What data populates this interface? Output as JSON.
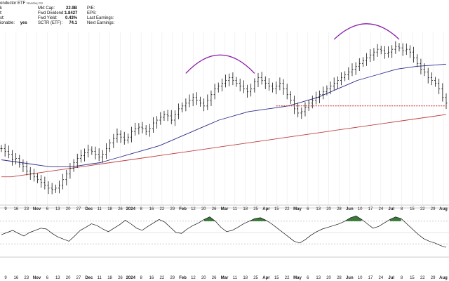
{
  "header": {
    "title": "onductor ETF",
    "exchange": "Nasdaq GS",
    "rows": [
      {
        "label": "k",
        "value": ""
      },
      {
        "label": "t:",
        "value": ""
      },
      {
        "label": "st:",
        "value": ""
      },
      {
        "label": "ionable:",
        "value": "yes"
      }
    ],
    "metrics": [
      {
        "label": "Mkt Cap:",
        "value": "22.9B"
      },
      {
        "label": "Fwd Dividend:",
        "value": "1.8427"
      },
      {
        "label": "Fwd Yield:",
        "value": "0.43%"
      },
      {
        "label": "SCTR (ETF):",
        "value": "74.1"
      }
    ],
    "fundamentals": [
      "P/E:",
      "EPS:",
      "Last Earnings:",
      "Next Earnings:"
    ]
  },
  "colors": {
    "price_bars": "#111111",
    "ma_short": "#2c2c8c",
    "ma_long": "#c04040",
    "arcs": "#8a1aa8",
    "support_line": "#cc2222",
    "osc_fill": "#3a7a3a",
    "osc_line": "#111111",
    "grid": "#e6e6e6"
  },
  "chart_data": {
    "type": "ohlc",
    "x_ticks": [
      {
        "label": "9",
        "bold": false
      },
      {
        "label": "16",
        "bold": false
      },
      {
        "label": "23",
        "bold": false
      },
      {
        "label": "Nov",
        "bold": true
      },
      {
        "label": "6",
        "bold": false
      },
      {
        "label": "13",
        "bold": false
      },
      {
        "label": "20",
        "bold": false
      },
      {
        "label": "27",
        "bold": false
      },
      {
        "label": "Dec",
        "bold": true
      },
      {
        "label": "11",
        "bold": false
      },
      {
        "label": "18",
        "bold": false
      },
      {
        "label": "26",
        "bold": false
      },
      {
        "label": "2024",
        "bold": true
      },
      {
        "label": "8",
        "bold": false
      },
      {
        "label": "16",
        "bold": false
      },
      {
        "label": "22",
        "bold": false
      },
      {
        "label": "29",
        "bold": false
      },
      {
        "label": "Feb",
        "bold": true
      },
      {
        "label": "12",
        "bold": false
      },
      {
        "label": "20",
        "bold": false
      },
      {
        "label": "26",
        "bold": false
      },
      {
        "label": "Mar",
        "bold": true
      },
      {
        "label": "11",
        "bold": false
      },
      {
        "label": "18",
        "bold": false
      },
      {
        "label": "25",
        "bold": false
      },
      {
        "label": "Apr",
        "bold": true
      },
      {
        "label": "15",
        "bold": false
      },
      {
        "label": "22",
        "bold": false
      },
      {
        "label": "May",
        "bold": true
      },
      {
        "label": "6",
        "bold": false
      },
      {
        "label": "13",
        "bold": false
      },
      {
        "label": "20",
        "bold": false
      },
      {
        "label": "28",
        "bold": false
      },
      {
        "label": "Jun",
        "bold": true
      },
      {
        "label": "10",
        "bold": false
      },
      {
        "label": "17",
        "bold": false
      },
      {
        "label": "24",
        "bold": false
      },
      {
        "label": "Jul",
        "bold": true
      },
      {
        "label": "8",
        "bold": false
      },
      {
        "label": "15",
        "bold": false
      },
      {
        "label": "22",
        "bold": false
      },
      {
        "label": "29",
        "bold": false
      },
      {
        "label": "Aug",
        "bold": true
      }
    ],
    "price_series": [
      {
        "name": "close",
        "values": [
          0.38,
          0.36,
          0.34,
          0.3,
          0.31,
          0.27,
          0.25,
          0.22,
          0.2,
          0.18,
          0.16,
          0.14,
          0.12,
          0.1,
          0.09,
          0.1,
          0.12,
          0.16,
          0.2,
          0.24,
          0.28,
          0.31,
          0.33,
          0.35,
          0.37,
          0.36,
          0.34,
          0.32,
          0.34,
          0.38,
          0.42,
          0.45,
          0.48,
          0.46,
          0.44,
          0.46,
          0.5,
          0.52,
          0.53,
          0.52,
          0.5,
          0.52,
          0.56,
          0.58,
          0.6,
          0.62,
          0.61,
          0.58,
          0.62,
          0.66,
          0.68,
          0.7,
          0.72,
          0.74,
          0.72,
          0.7,
          0.68,
          0.72,
          0.76,
          0.8,
          0.82,
          0.84,
          0.86,
          0.88,
          0.86,
          0.84,
          0.82,
          0.8,
          0.78,
          0.8,
          0.85,
          0.88,
          0.86,
          0.84,
          0.82,
          0.8,
          0.82,
          0.84,
          0.8,
          0.76,
          0.72,
          0.66,
          0.63,
          0.64,
          0.67,
          0.7,
          0.72,
          0.74,
          0.76,
          0.78,
          0.8,
          0.82,
          0.84,
          0.86,
          0.88,
          0.9,
          0.92,
          0.94,
          0.96,
          0.98,
          1.0,
          1.02,
          1.04,
          1.06,
          1.08,
          1.07,
          1.05,
          1.06,
          1.08,
          1.1,
          1.09,
          1.07,
          1.08,
          1.06,
          1.02,
          0.98,
          0.94,
          0.92,
          0.88,
          0.86,
          0.84,
          0.8,
          0.74,
          0.7
        ]
      }
    ],
    "ma_series": [
      {
        "values": [
          0.3,
          0.29,
          0.28,
          0.27,
          0.26,
          0.25,
          0.25,
          0.25,
          0.26,
          0.27,
          0.28,
          0.3,
          0.32,
          0.34,
          0.36,
          0.38,
          0.4,
          0.43,
          0.46,
          0.49,
          0.52,
          0.55,
          0.58,
          0.6,
          0.62,
          0.64,
          0.65,
          0.66,
          0.67,
          0.68,
          0.7,
          0.72,
          0.74,
          0.77,
          0.8,
          0.83,
          0.86,
          0.88,
          0.9,
          0.92,
          0.94,
          0.95,
          0.96,
          0.965,
          0.97,
          0.975
        ]
      },
      {
        "values": [
          0.18,
          0.18,
          0.19,
          0.2,
          0.21,
          0.22,
          0.23,
          0.24,
          0.25,
          0.26,
          0.27,
          0.28,
          0.29,
          0.3,
          0.31,
          0.32,
          0.33,
          0.34,
          0.35,
          0.36,
          0.37,
          0.38,
          0.39,
          0.4,
          0.41,
          0.42,
          0.43,
          0.44,
          0.45,
          0.46,
          0.47,
          0.48,
          0.49,
          0.5,
          0.51,
          0.52,
          0.53,
          0.54,
          0.55,
          0.56,
          0.57,
          0.58,
          0.59,
          0.6,
          0.61,
          0.62
        ]
      }
    ],
    "oscillator": {
      "values": [
        0.45,
        0.5,
        0.55,
        0.48,
        0.42,
        0.5,
        0.55,
        0.6,
        0.58,
        0.48,
        0.4,
        0.35,
        0.3,
        0.42,
        0.55,
        0.62,
        0.7,
        0.66,
        0.58,
        0.52,
        0.6,
        0.68,
        0.78,
        0.7,
        0.6,
        0.55,
        0.64,
        0.72,
        0.8,
        0.74,
        0.62,
        0.5,
        0.48,
        0.58,
        0.66,
        0.72,
        0.8,
        0.86,
        0.76,
        0.62,
        0.52,
        0.55,
        0.62,
        0.7,
        0.76,
        0.82,
        0.84,
        0.78,
        0.7,
        0.6,
        0.5,
        0.4,
        0.3,
        0.26,
        0.34,
        0.44,
        0.52,
        0.58,
        0.62,
        0.66,
        0.7,
        0.76,
        0.84,
        0.88,
        0.8,
        0.7,
        0.6,
        0.64,
        0.72,
        0.8,
        0.86,
        0.82,
        0.7,
        0.58,
        0.46,
        0.36,
        0.3,
        0.26,
        0.2,
        0.16
      ],
      "overbought": 0.76,
      "oversold": 0.24
    },
    "annotations": [
      {
        "type": "arc",
        "index_start": 51,
        "index_end": 70
      },
      {
        "type": "arc",
        "index_start": 92,
        "index_end": 110
      },
      {
        "type": "support",
        "index_start": 76,
        "index_end": 123,
        "value": 0.72
      }
    ]
  }
}
